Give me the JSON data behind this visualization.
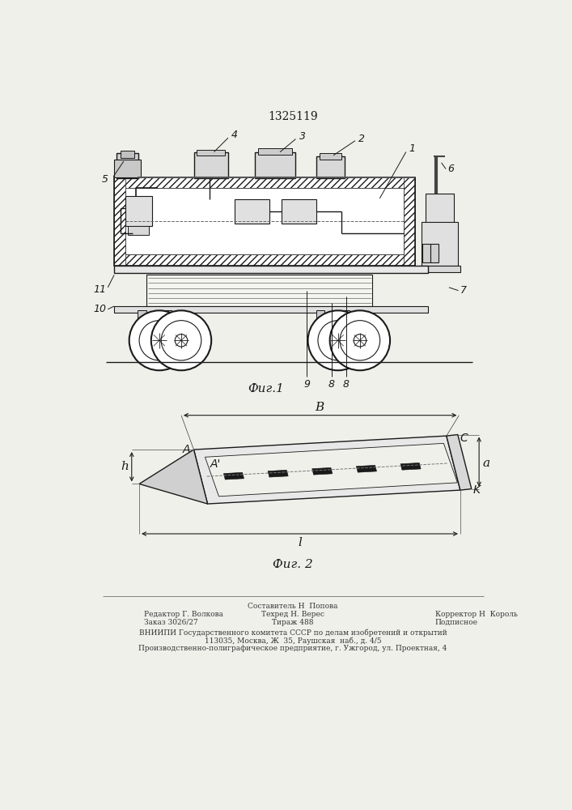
{
  "title": "1325119",
  "fig1_caption": "Фиг.1",
  "fig2_caption": "Фиг. 2",
  "footer_line1_center": "Составитель Н  Попова",
  "footer_line2_left": "Редактор Г. Волкова",
  "footer_line2_center": "Техред Н. Верес",
  "footer_line2_right": "Корректор Н  Король",
  "footer_line3_left": "Заказ 3026/27",
  "footer_line3_center": "Тираж 488",
  "footer_line3_right": "Подписное",
  "footer_line4": "ВНИИПИ Государственного комитета СССР по делам изобретений и открытий",
  "footer_line5": "113035, Москва, Ж  35, Раушская  наб., д. 4/5",
  "footer_line6": "Производственно-полиграфическое предприятие, г. Ужгород, ул. Проектная, 4",
  "bg_color": "#f0f0eb",
  "line_color": "#1a1a1a",
  "label_color": "#1a1a1a"
}
